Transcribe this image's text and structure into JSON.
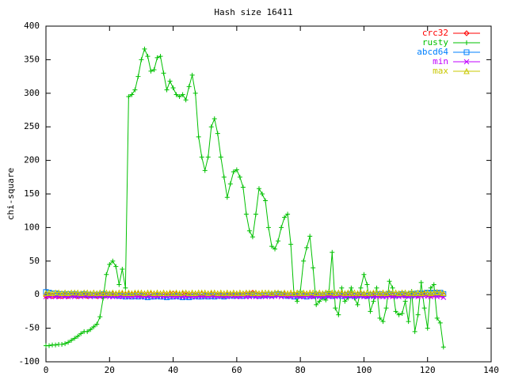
{
  "chart_data": {
    "type": "line",
    "title": "Hash size 16411",
    "ylabel": "chi-square",
    "xlim": [
      0,
      140
    ],
    "xticks": [
      0,
      20,
      40,
      60,
      80,
      100,
      120,
      140
    ],
    "ylim": [
      -100,
      400
    ],
    "yticks": [
      -100,
      -50,
      0,
      50,
      100,
      150,
      200,
      250,
      300,
      350,
      400
    ],
    "legend": "top-right",
    "x": [
      0,
      1,
      2,
      3,
      4,
      5,
      6,
      7,
      8,
      9,
      10,
      11,
      12,
      13,
      14,
      15,
      16,
      17,
      18,
      19,
      20,
      21,
      22,
      23,
      24,
      25,
      26,
      27,
      28,
      29,
      30,
      31,
      32,
      33,
      34,
      35,
      36,
      37,
      38,
      39,
      40,
      41,
      42,
      43,
      44,
      45,
      46,
      47,
      48,
      49,
      50,
      51,
      52,
      53,
      54,
      55,
      56,
      57,
      58,
      59,
      60,
      61,
      62,
      63,
      64,
      65,
      66,
      67,
      68,
      69,
      70,
      71,
      72,
      73,
      74,
      75,
      76,
      77,
      78,
      79,
      80,
      81,
      82,
      83,
      84,
      85,
      86,
      87,
      88,
      89,
      90,
      91,
      92,
      93,
      94,
      95,
      96,
      97,
      98,
      99,
      100,
      101,
      102,
      103,
      104,
      105,
      106,
      107,
      108,
      109,
      110,
      111,
      112,
      113,
      114,
      115,
      116,
      117,
      118,
      119,
      120,
      121,
      122,
      123,
      124,
      125
    ],
    "series": [
      {
        "name": "crc32",
        "color": "#ff0000",
        "marker": "diamond",
        "values": [
          -2,
          -1,
          -2,
          -1,
          -2,
          -2,
          -1,
          -2,
          -1,
          -1,
          -2,
          -1,
          -1,
          -2,
          -1,
          -1,
          -2,
          -1,
          0,
          -1,
          0,
          1,
          0,
          0,
          1,
          0,
          1,
          0,
          1,
          1,
          0,
          1,
          0,
          1,
          1,
          0,
          1,
          0,
          1,
          1,
          2,
          1,
          0,
          1,
          2,
          1,
          0,
          1,
          0,
          1,
          0,
          1,
          1,
          0,
          1,
          0,
          -1,
          0,
          1,
          0,
          1,
          0,
          1,
          2,
          1,
          3,
          2,
          1,
          0,
          -1,
          0,
          1,
          0,
          1,
          0,
          1,
          -1,
          0,
          1,
          0,
          -1,
          0,
          1,
          0,
          -1,
          1,
          0,
          -1,
          0,
          1,
          0,
          -1,
          0,
          1,
          0,
          1,
          0,
          -1,
          0,
          1,
          0,
          -1,
          0,
          1,
          0,
          -1,
          0,
          1,
          0,
          -1,
          0,
          1,
          0,
          -1,
          0,
          1,
          0,
          -1,
          0,
          1,
          0,
          -1,
          0,
          1,
          0,
          -1
        ]
      },
      {
        "name": "rusty",
        "color": "#00c000",
        "marker": "plus",
        "values": [
          -76,
          -76,
          -75,
          -75,
          -74,
          -74,
          -73,
          -71,
          -68,
          -65,
          -62,
          -58,
          -55,
          -55,
          -52,
          -48,
          -44,
          -33,
          -5,
          30,
          45,
          50,
          42,
          15,
          38,
          10,
          295,
          298,
          305,
          325,
          350,
          366,
          355,
          333,
          335,
          353,
          355,
          330,
          305,
          318,
          308,
          298,
          295,
          298,
          290,
          310,
          327,
          300,
          235,
          205,
          185,
          205,
          250,
          262,
          240,
          205,
          175,
          145,
          165,
          183,
          186,
          175,
          160,
          120,
          95,
          86,
          120,
          158,
          150,
          140,
          100,
          72,
          68,
          80,
          100,
          115,
          120,
          75,
          0,
          -10,
          5,
          50,
          70,
          87,
          40,
          -15,
          -10,
          -5,
          -8,
          5,
          63,
          -20,
          -30,
          10,
          -10,
          -5,
          10,
          -5,
          -15,
          10,
          30,
          15,
          -25,
          -10,
          10,
          -35,
          -40,
          -20,
          20,
          10,
          -25,
          -30,
          -28,
          -10,
          -40,
          5,
          -55,
          -30,
          18,
          -20,
          -50,
          10,
          15,
          -35,
          -42,
          -78
        ]
      },
      {
        "name": "abcd64",
        "color": "#0080ff",
        "marker": "square",
        "values": [
          4,
          3,
          2,
          2,
          1,
          1,
          0,
          1,
          0,
          1,
          0,
          0,
          1,
          0,
          0,
          -1,
          0,
          0,
          1,
          0,
          0,
          -1,
          -1,
          -2,
          -2,
          -3,
          -2,
          -3,
          -2,
          -3,
          -2,
          -3,
          -4,
          -3,
          -3,
          -2,
          -3,
          -3,
          -4,
          -3,
          -3,
          -2,
          -3,
          -4,
          -3,
          -4,
          -3,
          -2,
          -3,
          -3,
          -2,
          -3,
          -2,
          -3,
          -2,
          -2,
          -3,
          -2,
          -1,
          -2,
          -1,
          -2,
          -2,
          -1,
          -1,
          0,
          -1,
          -2,
          -1,
          -1,
          0,
          -1,
          0,
          1,
          0,
          -1,
          -2,
          -1,
          -3,
          -2,
          -1,
          -2,
          -3,
          -1,
          -2,
          0,
          -1,
          -2,
          0,
          -1,
          -2,
          -1,
          0,
          -2,
          -1,
          0,
          -1,
          -2,
          -1,
          0,
          -1,
          -2,
          0,
          -1,
          0,
          1,
          -1,
          0,
          1,
          0,
          -1,
          0,
          1,
          0,
          -1,
          1,
          0,
          2,
          1,
          2,
          3,
          2,
          3,
          2,
          3,
          1
        ]
      },
      {
        "name": "min",
        "color": "#c000ff",
        "marker": "cross",
        "values": [
          -3,
          -3,
          -2,
          -3,
          -3,
          -2,
          -3,
          -3,
          -2,
          -3,
          -2,
          -3,
          -2,
          -2,
          -3,
          -2,
          -2,
          -3,
          -2,
          -2,
          -3,
          -3,
          -2,
          -3,
          -3,
          -2,
          -3,
          -3,
          -2,
          -3,
          -2,
          -3,
          -2,
          -2,
          -3,
          -2,
          -2,
          -3,
          -2,
          -2,
          -3,
          -3,
          -2,
          -3,
          -3,
          -2,
          -3,
          -3,
          -2,
          -3,
          -2,
          -3,
          -2,
          -2,
          -3,
          -2,
          -2,
          -3,
          -2,
          -2,
          -3,
          -3,
          -2,
          -3,
          -3,
          -2,
          -3,
          -3,
          -2,
          -3,
          -2,
          -3,
          -2,
          -2,
          -3,
          -2,
          -2,
          -3,
          -2,
          -2,
          -3,
          -3,
          -2,
          -3,
          -3,
          -2,
          -3,
          -3,
          -2,
          -3,
          -2,
          -3,
          -2,
          -2,
          -3,
          -2,
          -2,
          -3,
          -2,
          -2,
          -3,
          -3,
          -2,
          -3,
          -3,
          -2,
          -3,
          -3,
          -2,
          -3,
          -2,
          -3,
          -2,
          -2,
          -3,
          -2,
          -2,
          -3,
          -2,
          -2,
          -2,
          -3,
          -2,
          -3,
          -2,
          -4
        ]
      },
      {
        "name": "max",
        "color": "#c8c800",
        "marker": "triangle",
        "values": [
          2,
          3,
          2,
          3,
          3,
          2,
          3,
          2,
          3,
          3,
          3,
          2,
          3,
          3,
          2,
          3,
          2,
          3,
          2,
          3,
          2,
          3,
          2,
          3,
          3,
          2,
          3,
          2,
          3,
          3,
          3,
          2,
          3,
          3,
          2,
          3,
          2,
          3,
          2,
          3,
          2,
          3,
          2,
          3,
          3,
          2,
          3,
          2,
          3,
          3,
          3,
          2,
          3,
          3,
          2,
          3,
          2,
          3,
          2,
          3,
          2,
          3,
          2,
          3,
          3,
          2,
          3,
          2,
          3,
          3,
          3,
          2,
          3,
          3,
          2,
          3,
          2,
          3,
          2,
          3,
          2,
          3,
          2,
          3,
          3,
          2,
          3,
          2,
          3,
          3,
          3,
          2,
          3,
          3,
          2,
          3,
          2,
          3,
          2,
          3,
          2,
          3,
          2,
          3,
          3,
          2,
          3,
          2,
          3,
          3,
          3,
          2,
          3,
          3,
          2,
          3,
          2,
          3,
          2,
          3,
          3,
          2,
          3,
          4,
          3,
          2
        ]
      }
    ]
  }
}
